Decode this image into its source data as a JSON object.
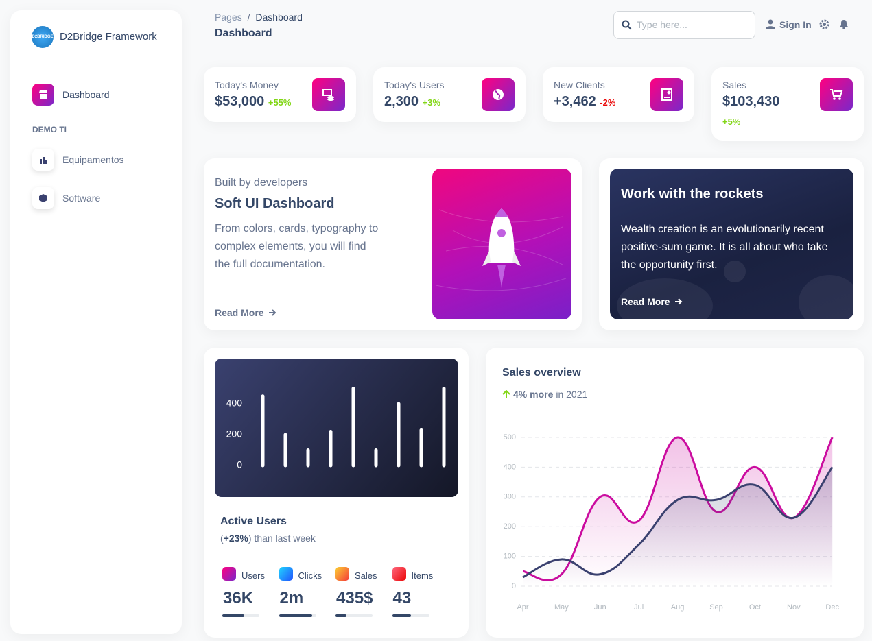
{
  "sidebar": {
    "brand": "D2Bridge Framework",
    "logo_text": "D2BRIDGE",
    "nav": [
      "Dashboard"
    ],
    "section": "DEMO TI",
    "section_items": [
      "Equipamentos",
      "Software"
    ]
  },
  "header": {
    "breadcrumb": [
      "Pages",
      "Dashboard"
    ],
    "separator": "/",
    "title": "Dashboard",
    "search_placeholder": "Type here...",
    "sign_in": "Sign In"
  },
  "stats": [
    {
      "title": "Today's Money",
      "value": "$53,000",
      "change": "+55%"
    },
    {
      "title": "Today's Users",
      "value": "2,300",
      "change": "+3%"
    },
    {
      "title": "New Clients",
      "value": "+3,462",
      "change": "-2%"
    },
    {
      "title": "Sales",
      "value": "$103,430",
      "change": "+5%"
    }
  ],
  "promo": {
    "kicker": "Built by developers",
    "title": "Soft UI Dashboard",
    "text": "From colors, cards, typography to complex elements, you will find the full documentation.",
    "link": "Read More"
  },
  "rockets": {
    "title": "Work with the rockets",
    "text": "Wealth creation is an evolutionarily recent positive-sum game. It is all about who take the opportunity first.",
    "link": "Read More"
  },
  "active_users": {
    "title": "Active Users",
    "subtitle": [
      "(",
      "+23%",
      ") than last week"
    ],
    "metrics": [
      {
        "label": "Users",
        "value": "36K",
        "progress": 60
      },
      {
        "label": "Clicks",
        "value": "2m",
        "progress": 90
      },
      {
        "label": "Sales",
        "value": "435$",
        "progress": 30
      },
      {
        "label": "Items",
        "value": "43",
        "progress": 50
      }
    ]
  },
  "sales_overview": {
    "title": "Sales overview",
    "change": [
      "4% more",
      "in 2021"
    ]
  },
  "chart_data": [
    {
      "type": "bar",
      "categories": [
        null,
        null,
        null,
        null,
        null,
        null,
        null,
        null,
        null
      ],
      "values": [
        450,
        200,
        100,
        220,
        500,
        100,
        400,
        230,
        500
      ],
      "color": "#ffffff",
      "ylim": [
        0,
        500
      ],
      "yticks": [
        0,
        200,
        400
      ],
      "grid": false
    },
    {
      "type": "line",
      "categories": [
        "Apr",
        "May",
        "Jun",
        "Jul",
        "Aug",
        "Sep",
        "Oct",
        "Nov",
        "Dec"
      ],
      "series": [
        {
          "color": "#cb0c9f",
          "values": [
            50,
            40,
            300,
            220,
            500,
            250,
            400,
            230,
            500
          ]
        },
        {
          "color": "#3a416f",
          "values": [
            30,
            90,
            40,
            140,
            290,
            290,
            340,
            230,
            400
          ]
        }
      ],
      "ylim": [
        0,
        500
      ],
      "yticks": [
        0,
        100,
        200,
        300,
        400,
        500
      ],
      "grid": true
    }
  ]
}
